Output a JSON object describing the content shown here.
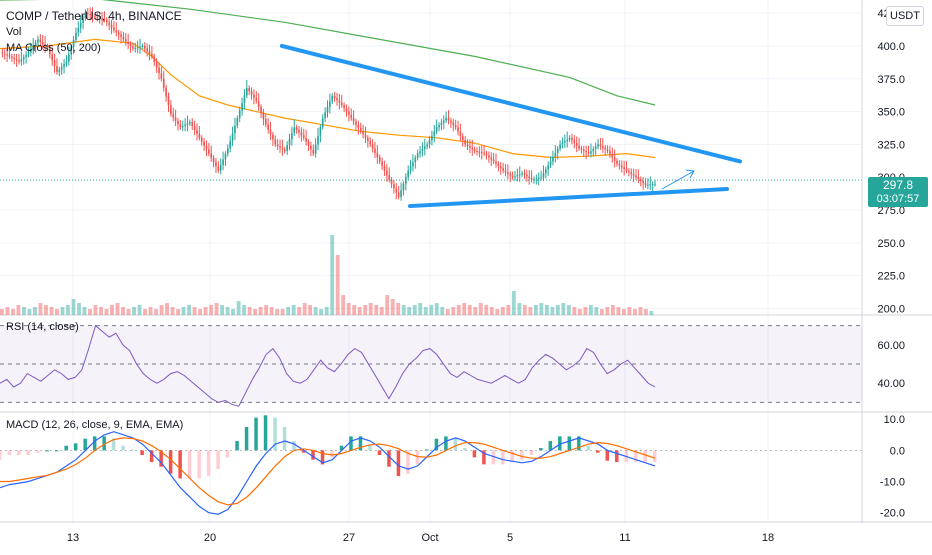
{
  "header": {
    "symbol": "COMP / TetherUS, 4h, BINANCE",
    "vol_label": "Vol",
    "ma_label": "MA Cross (50, 200)"
  },
  "rsi_label": "RSI (14, close)",
  "macd_label": "MACD (12, 26, close, 9, EMA, EMA)",
  "currency_badge": "USDT",
  "last_price": "297.8",
  "countdown": "03:07:57",
  "colors": {
    "up": "#26a69a",
    "down": "#ef5350",
    "trendline": "#2196f3",
    "ma50": "#ff9800",
    "ma200": "#4caf50",
    "rsi": "#7e57c2",
    "macd": "#2962ff",
    "signal": "#ff6d00"
  },
  "chart_data": [
    {
      "type": "candlestick",
      "title": "COMP / TetherUS, 4h, BINANCE",
      "ylim": [
        195,
        435
      ],
      "y_ticks": [
        "425.0",
        "400.0",
        "375.0",
        "350.0",
        "325.0",
        "300.0",
        "275.0",
        "250.0",
        "225.0",
        "200.0"
      ],
      "y_tick_values": [
        425,
        400,
        375,
        350,
        325,
        300,
        275,
        250,
        225,
        200
      ],
      "x_labels": [
        "13",
        "20",
        "27",
        "Oct",
        "5",
        "11",
        "18"
      ],
      "close_path": [
        [
          0,
          395
        ],
        [
          4,
          392
        ],
        [
          8,
          388
        ],
        [
          12,
          395
        ],
        [
          16,
          405
        ],
        [
          20,
          398
        ],
        [
          24,
          380
        ],
        [
          28,
          388
        ],
        [
          32,
          410
        ],
        [
          36,
          425
        ],
        [
          40,
          422
        ],
        [
          44,
          420
        ],
        [
          48,
          412
        ],
        [
          52,
          405
        ],
        [
          56,
          398
        ],
        [
          60,
          400
        ],
        [
          64,
          392
        ],
        [
          68,
          375
        ],
        [
          72,
          348
        ],
        [
          76,
          338
        ],
        [
          80,
          342
        ],
        [
          84,
          330
        ],
        [
          88,
          318
        ],
        [
          92,
          305
        ],
        [
          96,
          322
        ],
        [
          100,
          345
        ],
        [
          104,
          368
        ],
        [
          108,
          358
        ],
        [
          112,
          340
        ],
        [
          116,
          325
        ],
        [
          120,
          320
        ],
        [
          124,
          338
        ],
        [
          128,
          330
        ],
        [
          132,
          318
        ],
        [
          136,
          345
        ],
        [
          140,
          362
        ],
        [
          144,
          355
        ],
        [
          148,
          345
        ],
        [
          152,
          335
        ],
        [
          156,
          325
        ],
        [
          160,
          312
        ],
        [
          164,
          298
        ],
        [
          168,
          285
        ],
        [
          172,
          305
        ],
        [
          176,
          318
        ],
        [
          180,
          325
        ],
        [
          184,
          338
        ],
        [
          188,
          345
        ],
        [
          192,
          338
        ],
        [
          196,
          325
        ],
        [
          200,
          320
        ],
        [
          204,
          318
        ],
        [
          208,
          312
        ],
        [
          212,
          305
        ],
        [
          216,
          300
        ],
        [
          220,
          303
        ],
        [
          224,
          298
        ],
        [
          228,
          300
        ],
        [
          232,
          312
        ],
        [
          236,
          325
        ],
        [
          240,
          330
        ],
        [
          244,
          322
        ],
        [
          248,
          318
        ],
        [
          252,
          325
        ],
        [
          256,
          320
        ],
        [
          260,
          310
        ],
        [
          264,
          305
        ],
        [
          268,
          300
        ],
        [
          272,
          294
        ],
        [
          276,
          295
        ]
      ],
      "ma50": [
        [
          0,
          398
        ],
        [
          20,
          400
        ],
        [
          40,
          405
        ],
        [
          56,
          402
        ],
        [
          64,
          392
        ],
        [
          72,
          378
        ],
        [
          84,
          362
        ],
        [
          96,
          355
        ],
        [
          108,
          350
        ],
        [
          120,
          345
        ],
        [
          136,
          340
        ],
        [
          152,
          335
        ],
        [
          168,
          332
        ],
        [
          184,
          330
        ],
        [
          200,
          326
        ],
        [
          216,
          318
        ],
        [
          232,
          315
        ],
        [
          248,
          316
        ],
        [
          264,
          318
        ],
        [
          276,
          315
        ]
      ],
      "ma200": [
        [
          0,
          435
        ],
        [
          40,
          436
        ],
        [
          80,
          428
        ],
        [
          120,
          418
        ],
        [
          160,
          405
        ],
        [
          200,
          392
        ],
        [
          240,
          376
        ],
        [
          260,
          362
        ],
        [
          276,
          355
        ]
      ],
      "trendline_upper": [
        [
          64,
          400
        ],
        [
          276,
          312
        ]
      ],
      "trendline_lower": [
        [
          168,
          278
        ],
        [
          276,
          291
        ]
      ],
      "volume_relative": [
        3,
        4,
        3,
        5,
        4,
        3,
        4,
        6,
        5,
        4,
        3,
        4,
        5,
        8,
        6,
        4,
        3,
        5,
        4,
        3,
        5,
        6,
        4,
        3,
        4,
        5,
        3,
        4,
        3,
        5,
        6,
        4,
        3,
        4,
        5,
        4,
        3,
        4,
        5,
        6,
        5,
        4,
        3,
        7,
        5,
        4,
        3,
        4,
        5,
        4,
        3,
        3,
        4,
        5,
        4,
        6,
        5,
        4,
        3,
        4,
        40,
        30,
        10,
        6,
        5,
        4,
        5,
        6,
        5,
        4,
        10,
        8,
        6,
        5,
        4,
        5,
        6,
        4,
        5,
        6,
        4,
        3,
        4,
        5,
        6,
        5,
        4,
        6,
        5,
        4,
        3,
        4,
        5,
        12,
        6,
        5,
        4,
        5,
        6,
        5,
        4,
        5,
        6,
        5,
        4,
        3,
        4,
        5,
        4,
        3,
        4,
        5,
        4,
        3,
        4,
        3,
        4,
        3,
        2
      ]
    },
    {
      "type": "line",
      "title": "RSI (14, close)",
      "ylim": [
        25,
        75
      ],
      "y_ticks": [
        "60.00",
        "40.00"
      ],
      "y_tick_values": [
        60,
        40
      ],
      "bands": [
        70,
        50,
        30
      ],
      "values": [
        40,
        42,
        38,
        40,
        45,
        43,
        41,
        44,
        47,
        45,
        42,
        43,
        47,
        58,
        70,
        67,
        64,
        66,
        60,
        57,
        50,
        45,
        42,
        40,
        42,
        45,
        46,
        44,
        41,
        38,
        35,
        32,
        30,
        31,
        29,
        28,
        35,
        42,
        48,
        55,
        58,
        53,
        45,
        41,
        40,
        42,
        47,
        52,
        48,
        46,
        50,
        55,
        58,
        56,
        50,
        44,
        38,
        32,
        38,
        45,
        50,
        53,
        57,
        58,
        55,
        50,
        45,
        43,
        46,
        44,
        42,
        41,
        40,
        42,
        44,
        42,
        40,
        42,
        48,
        52,
        55,
        53,
        50,
        47,
        49,
        52,
        58,
        56,
        50,
        45,
        47,
        50,
        52,
        48,
        44,
        40,
        38
      ]
    },
    {
      "type": "macd",
      "title": "MACD (12, 26, close, 9, EMA, EMA)",
      "ylim": [
        -23,
        12
      ],
      "y_ticks": [
        "10.0",
        "0.0",
        "-10.0",
        "-20.0"
      ],
      "y_tick_values": [
        10,
        0,
        -10,
        -20
      ],
      "macd": [
        -12,
        -11,
        -10.5,
        -10,
        -9,
        -8,
        -7,
        -5,
        -3,
        0,
        3,
        5,
        6,
        5,
        4,
        2,
        -1,
        -4,
        -8,
        -12,
        -15,
        -18,
        -20,
        -20.5,
        -19,
        -15,
        -10,
        -5,
        -1,
        2,
        3,
        2,
        0,
        -2,
        -4,
        -3,
        0,
        3,
        4,
        3,
        1,
        -2,
        -5,
        -6,
        -5,
        -2,
        1,
        3,
        4,
        3,
        1,
        -1,
        -2,
        -3,
        -3.5,
        -4,
        -3.5,
        -2,
        0,
        2,
        3,
        4,
        3,
        2,
        0,
        -1,
        -2,
        -3,
        -4,
        -5
      ],
      "signal": [
        -10,
        -10,
        -9.5,
        -9,
        -8.5,
        -8,
        -7,
        -6,
        -4.5,
        -2.5,
        0,
        2,
        3.5,
        4,
        3.8,
        3,
        1.5,
        -0.5,
        -3,
        -6,
        -9,
        -12,
        -14.5,
        -16.5,
        -17.5,
        -17,
        -15,
        -12,
        -8.5,
        -5,
        -2,
        0,
        0.5,
        0,
        -1,
        -1.5,
        -1,
        0,
        1,
        1.8,
        2,
        1.5,
        0.5,
        -1,
        -2,
        -2.2,
        -1.5,
        0,
        1.5,
        2.5,
        2.5,
        2,
        1,
        0,
        -1,
        -2,
        -2.5,
        -2.5,
        -2,
        -1,
        0,
        1,
        2,
        2.5,
        2.2,
        1.5,
        0.5,
        -0.5,
        -1.5,
        -2.5
      ]
    }
  ]
}
